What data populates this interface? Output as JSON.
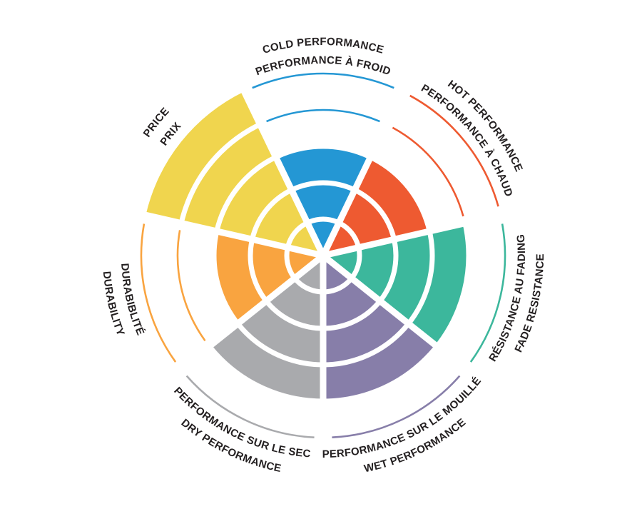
{
  "chart_data": {
    "type": "radar",
    "subtype": "segmented-polar-rating-wheel",
    "max_value": 5,
    "ring_levels": [
      1,
      2,
      3,
      4,
      5
    ],
    "grid": true,
    "legend_position": "labels-around-perimeter",
    "background_color": "#ffffff",
    "text_color": "#231f20",
    "sectors": [
      {
        "id": "cold-performance",
        "label_en": "COLD PERFORMANCE",
        "label_fr": "PERFORMANCE À FROID",
        "value": 3,
        "color": "#2497d4",
        "label_flipped": false
      },
      {
        "id": "hot-performance",
        "label_en": "HOT PERFORMANCE",
        "label_fr": "PERFORMANCE À CHAUD",
        "value": 3,
        "color": "#ee5a31",
        "label_flipped": false
      },
      {
        "id": "fade-resistance",
        "label_en": "FADE RESISTANCE",
        "label_fr": "RÉSISTANCE AU FADING",
        "value": 4,
        "color": "#3cb79c",
        "label_flipped": true
      },
      {
        "id": "wet-performance",
        "label_en": "WET PERFORMANCE",
        "label_fr": "PERFORMANCE SUR LE MOUILLÉ",
        "value": 4,
        "color": "#877ea9",
        "label_flipped": true
      },
      {
        "id": "dry-performance",
        "label_en": "DRY PERFORMANCE",
        "label_fr": "PERFORMANCE SUR LE SEC",
        "value": 4,
        "color": "#a9aaad",
        "label_flipped": true
      },
      {
        "id": "durability",
        "label_en": "DURABILITY",
        "label_fr": "DURABIBLITÉ",
        "value": 3,
        "color": "#f9a440",
        "label_flipped": true
      },
      {
        "id": "price",
        "label_en": "PRICE",
        "label_fr": "PRIX",
        "value": 5,
        "color": "#f0d54e",
        "label_flipped": false
      }
    ]
  }
}
